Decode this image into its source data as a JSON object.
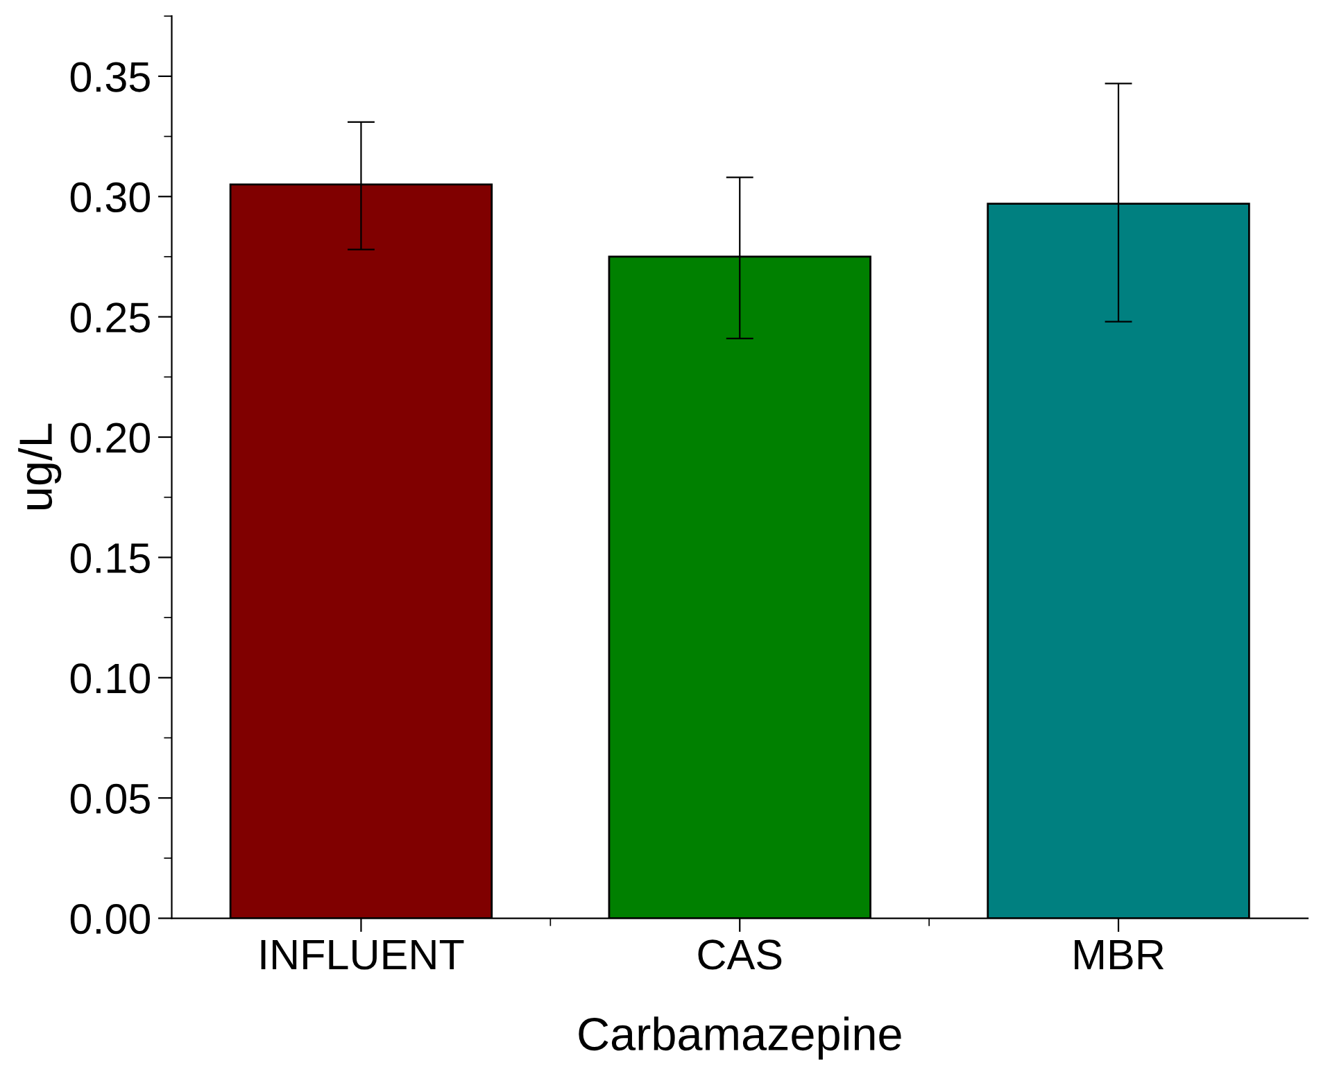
{
  "chart_data": {
    "type": "bar",
    "xlabel": "Carbamazepine",
    "ylabel": "ug/L",
    "categories": [
      "INFLUENT",
      "CAS",
      "MBR"
    ],
    "values": [
      0.305,
      0.275,
      0.297
    ],
    "colors": [
      "#800000",
      "#008000",
      "#008080"
    ],
    "errors": [
      [
        0.278,
        0.331
      ],
      [
        0.241,
        0.308
      ],
      [
        0.248,
        0.347
      ]
    ],
    "ylim": [
      0,
      0.375
    ],
    "yticks": [
      {
        "value": 0,
        "label": "0.00"
      },
      {
        "value": 0.05,
        "label": "0.05"
      },
      {
        "value": 0.1,
        "label": "0.10"
      },
      {
        "value": 0.15,
        "label": "0.15"
      },
      {
        "value": 0.2,
        "label": "0.20"
      },
      {
        "value": 0.25,
        "label": "0.25"
      },
      {
        "value": 0.3,
        "label": "0.30"
      },
      {
        "value": 0.35,
        "label": "0.35"
      }
    ],
    "grid": false,
    "legend": false
  }
}
